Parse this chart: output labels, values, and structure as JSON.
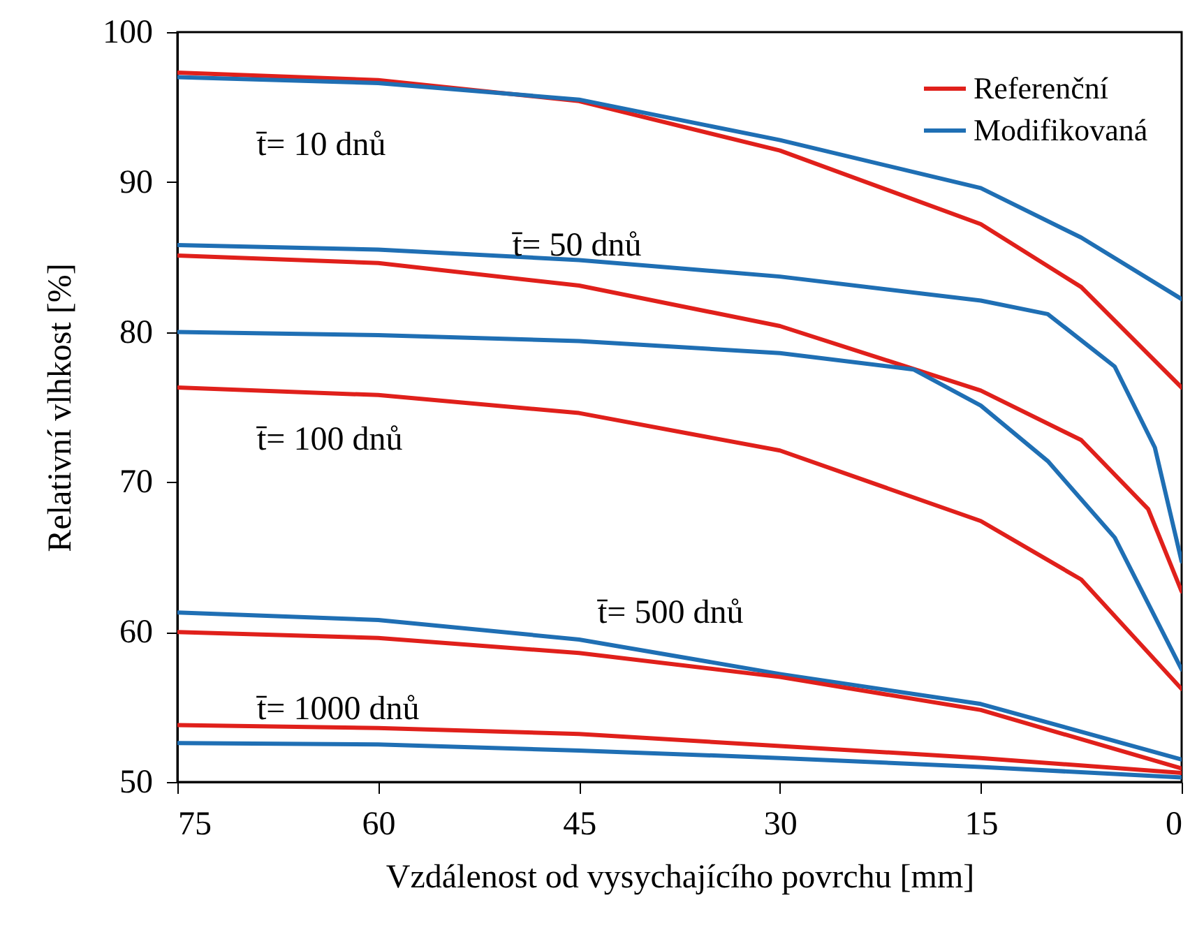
{
  "chart_data": {
    "type": "line",
    "xlabel": "Vzdálenost od vysychajícího povrchu [mm]",
    "ylabel": "Relativní vlhkost [%]",
    "xlim": [
      75,
      0
    ],
    "xticks": [
      75,
      60,
      45,
      30,
      15,
      0
    ],
    "ylim": [
      50,
      100
    ],
    "yticks": [
      50,
      60,
      70,
      80,
      90,
      100
    ],
    "legend": "top right",
    "grid": false,
    "line_style": "solid",
    "series": [
      {
        "name": "Referenční",
        "color": "#e0201b",
        "x": [
          75,
          60,
          45,
          30,
          15,
          7.5,
          0
        ],
        "values": [
          97.3,
          96.8,
          95.4,
          92.1,
          87.2,
          83,
          76.3
        ]
      },
      {
        "name": "Modifikovaná",
        "color": "#1f6fb4",
        "x": [
          75,
          60,
          45,
          30,
          15,
          7.5,
          0
        ],
        "values": [
          97.0,
          96.6,
          95.5,
          92.8,
          89.6,
          86.3,
          82.2
        ]
      },
      {
        "color": "#1f6fb4",
        "x": [
          75,
          60,
          45,
          30,
          15,
          10,
          5,
          2,
          0
        ],
        "values": [
          85.8,
          85.5,
          84.8,
          83.7,
          82.1,
          81.2,
          77.7,
          72.3,
          64.7
        ]
      },
      {
        "color": "#e0201b",
        "x": [
          75,
          60,
          45,
          30,
          15,
          7.5,
          2.5,
          0
        ],
        "values": [
          85.1,
          84.6,
          83.1,
          80.4,
          76.1,
          72.8,
          68.2,
          62.7
        ]
      },
      {
        "color": "#1f6fb4",
        "x": [
          75,
          60,
          45,
          30,
          20,
          15,
          10,
          5,
          0
        ],
        "values": [
          80.0,
          79.8,
          79.4,
          78.6,
          77.5,
          75.1,
          71.4,
          66.3,
          57.5
        ]
      },
      {
        "color": "#e0201b",
        "x": [
          75,
          60,
          45,
          30,
          15,
          7.5,
          0
        ],
        "values": [
          76.3,
          75.8,
          74.6,
          72.1,
          67.4,
          63.5,
          56.2
        ]
      },
      {
        "color": "#1f6fb4",
        "x": [
          75,
          60,
          45,
          30,
          15,
          0
        ],
        "values": [
          61.3,
          60.8,
          59.5,
          57.2,
          55.2,
          51.5
        ]
      },
      {
        "color": "#e0201b",
        "x": [
          75,
          60,
          45,
          30,
          15,
          0
        ],
        "values": [
          60.0,
          59.6,
          58.6,
          57.0,
          54.8,
          50.9
        ]
      },
      {
        "color": "#e0201b",
        "x": [
          75,
          60,
          45,
          30,
          15,
          0
        ],
        "values": [
          53.8,
          53.6,
          53.2,
          52.4,
          51.6,
          50.6
        ]
      },
      {
        "color": "#1f6fb4",
        "x": [
          75,
          60,
          45,
          30,
          15,
          0
        ],
        "values": [
          52.6,
          52.5,
          52.1,
          51.6,
          51.0,
          50.3
        ]
      }
    ],
    "annotations": [
      "t̄= 10 dnů",
      "t̄= 50 dnů",
      "t̄= 100 dnů",
      "t̄= 500 dnů",
      "t̄= 1000 dnů"
    ]
  }
}
